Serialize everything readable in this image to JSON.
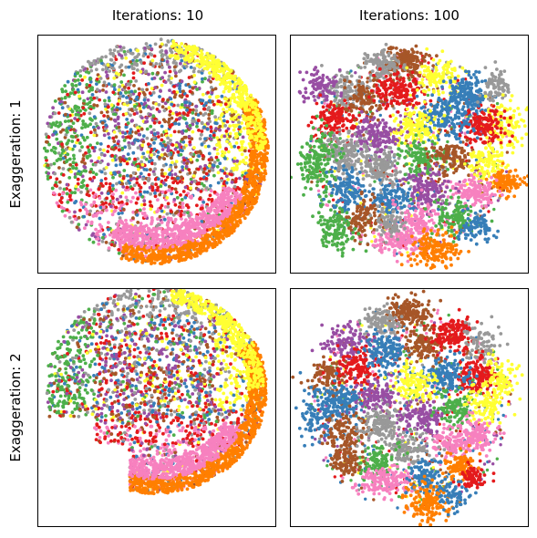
{
  "figure": {
    "col_titles": [
      "Iterations: 10",
      "Iterations: 100"
    ],
    "row_titles": [
      "Exaggeration: 1",
      "Exaggeration: 2"
    ]
  },
  "palette": [
    "#e41a1c",
    "#377eb8",
    "#4daf4a",
    "#984ea3",
    "#ff7f00",
    "#ffff33",
    "#a65628",
    "#f781bf",
    "#999999"
  ],
  "chart_data": [
    {
      "type": "scatter",
      "title": "Iterations: 10",
      "ylabel": "Exaggeration: 1",
      "xlabel": "",
      "axes": "hidden",
      "grid": false,
      "legend": "none",
      "layout": "single blob",
      "series_colors": [
        "#e41a1c",
        "#377eb8",
        "#4daf4a",
        "#984ea3",
        "#ff7f00",
        "#ffff33",
        "#a65628",
        "#f781bf",
        "#999999"
      ]
    },
    {
      "type": "scatter",
      "title": "Iterations: 100",
      "ylabel": "Exaggeration: 1",
      "xlabel": "",
      "axes": "hidden",
      "grid": false,
      "legend": "none",
      "layout": "separated clusters",
      "series_colors": [
        "#e41a1c",
        "#377eb8",
        "#4daf4a",
        "#984ea3",
        "#ff7f00",
        "#ffff33",
        "#a65628",
        "#f781bf",
        "#999999"
      ]
    },
    {
      "type": "scatter",
      "title": "Iterations: 10",
      "ylabel": "Exaggeration: 2",
      "xlabel": "",
      "axes": "hidden",
      "grid": false,
      "legend": "none",
      "layout": "single blob",
      "series_colors": [
        "#e41a1c",
        "#377eb8",
        "#4daf4a",
        "#984ea3",
        "#ff7f00",
        "#ffff33",
        "#a65628",
        "#f781bf",
        "#999999"
      ]
    },
    {
      "type": "scatter",
      "title": "Iterations: 100",
      "ylabel": "Exaggeration: 2",
      "xlabel": "",
      "axes": "hidden",
      "grid": false,
      "legend": "none",
      "layout": "separated clusters",
      "series_colors": [
        "#e41a1c",
        "#377eb8",
        "#4daf4a",
        "#984ea3",
        "#ff7f00",
        "#ffff33",
        "#a65628",
        "#f781bf",
        "#999999"
      ]
    }
  ]
}
